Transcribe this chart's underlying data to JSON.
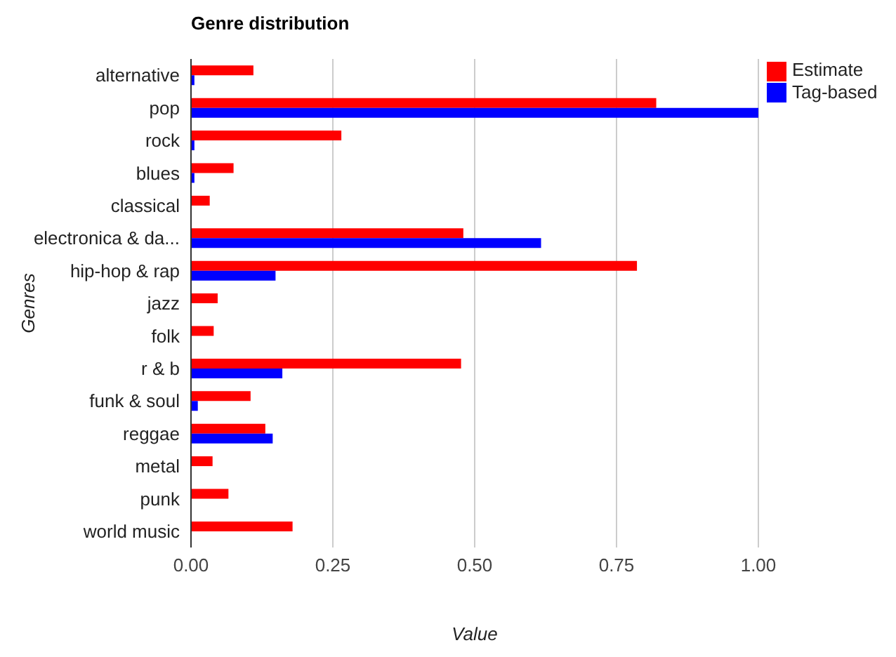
{
  "chart_data": {
    "type": "bar",
    "orientation": "horizontal",
    "title": "Genre distribution",
    "xlabel": "Value",
    "ylabel": "Genres",
    "categories": [
      "alternative",
      "pop",
      "rock",
      "blues",
      "classical",
      "electronica & da...",
      "hip-hop & rap",
      "jazz",
      "folk",
      "r & b",
      "funk & soul",
      "reggae",
      "metal",
      "punk",
      "world music"
    ],
    "series": [
      {
        "name": "Estimate",
        "color": "#ff0000",
        "values": [
          0.11,
          0.82,
          0.265,
          0.075,
          0.033,
          0.48,
          0.786,
          0.047,
          0.04,
          0.476,
          0.105,
          0.131,
          0.038,
          0.066,
          0.179
        ]
      },
      {
        "name": "Tag-based",
        "color": "#0000ff",
        "values": [
          0.006,
          1.0,
          0.006,
          0.006,
          null,
          0.617,
          0.149,
          null,
          null,
          0.161,
          0.012,
          0.144,
          null,
          null,
          null
        ]
      }
    ],
    "xlim": [
      0,
      1
    ],
    "xticks": [
      {
        "value": 0,
        "label": "0.00"
      },
      {
        "value": 0.25,
        "label": "0.25"
      },
      {
        "value": 0.5,
        "label": "0.50"
      },
      {
        "value": 0.75,
        "label": "0.75"
      },
      {
        "value": 1,
        "label": "1.00"
      }
    ],
    "grid": "x",
    "legend": "top right"
  }
}
